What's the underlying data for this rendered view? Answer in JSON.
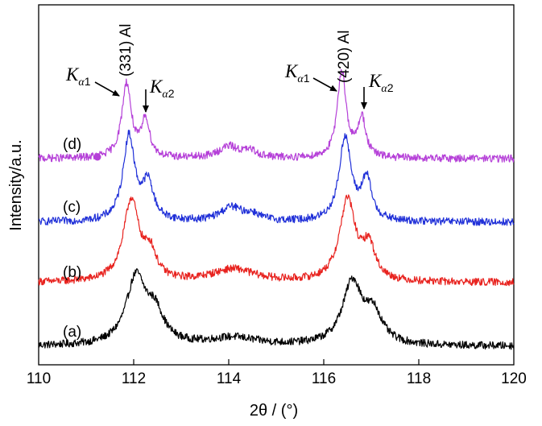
{
  "chart_data": {
    "type": "line",
    "title": "",
    "xlabel": "2θ / (°)",
    "ylabel": "Intensity/a.u.",
    "xlim": [
      110,
      120
    ],
    "x_ticks": [
      "110",
      "112",
      "114",
      "116",
      "118",
      "120"
    ],
    "y_ticks": [],
    "grid": false,
    "series": [
      {
        "name": "(a)",
        "label": "(a)",
        "color": "#000000",
        "baseline": 0.0,
        "peaks": [
          [
            112.05,
            0.25,
            1.05
          ],
          [
            112.45,
            0.22,
            0.45
          ],
          [
            114.1,
            0.6,
            0.12
          ],
          [
            116.6,
            0.25,
            0.98
          ],
          [
            117.05,
            0.22,
            0.45
          ]
        ]
      },
      {
        "name": "(b)",
        "label": "(b)",
        "color": "#e8231f",
        "baseline": 1.0,
        "peaks": [
          [
            111.95,
            0.2,
            1.28
          ],
          [
            112.35,
            0.15,
            0.4
          ],
          [
            114.1,
            0.55,
            0.2
          ],
          [
            116.5,
            0.2,
            1.28
          ],
          [
            116.95,
            0.16,
            0.52
          ]
        ]
      },
      {
        "name": "(c)",
        "label": "(c)",
        "color": "#2030d8",
        "baseline": 1.95,
        "peaks": [
          [
            111.9,
            0.15,
            1.33
          ],
          [
            112.3,
            0.14,
            0.57
          ],
          [
            114.05,
            0.28,
            0.22
          ],
          [
            114.5,
            0.2,
            0.1
          ],
          [
            116.45,
            0.15,
            1.32
          ],
          [
            116.9,
            0.13,
            0.64
          ]
        ]
      },
      {
        "name": "(d)",
        "label": "(d)",
        "color": "#b540d8",
        "baseline": 2.95,
        "peaks": [
          [
            111.85,
            0.12,
            1.17
          ],
          [
            112.25,
            0.1,
            0.59
          ],
          [
            114.0,
            0.25,
            0.18
          ],
          [
            114.45,
            0.2,
            0.1
          ],
          [
            116.38,
            0.11,
            1.38
          ],
          [
            116.8,
            0.1,
            0.62
          ]
        ]
      }
    ],
    "annotations": [
      {
        "text": "(331) Al"
      },
      {
        "text": "(420) Al"
      }
    ],
    "k_labels": [
      {
        "main": "K",
        "sub_greek": "α",
        "sub_num": "1"
      },
      {
        "main": "K",
        "sub_greek": "α",
        "sub_num": "2"
      },
      {
        "main": "K",
        "sub_greek": "α",
        "sub_num": "1"
      },
      {
        "main": "K",
        "sub_greek": "α",
        "sub_num": "2"
      }
    ]
  }
}
